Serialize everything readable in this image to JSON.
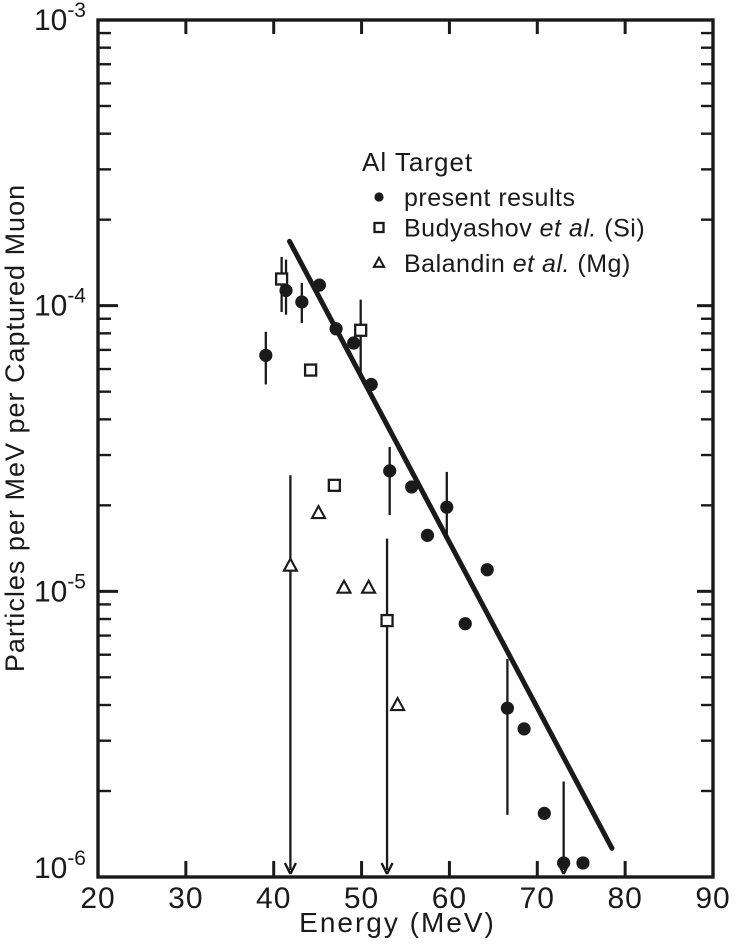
{
  "figure": {
    "background": "#ffffff",
    "ink": "#1a1a1a"
  },
  "x_axis": {
    "label": "Energy (MeV)",
    "ticks": [
      20,
      30,
      40,
      50,
      60,
      70,
      80,
      90
    ]
  },
  "y_axis": {
    "label": "Particles per MeV per Captured Muon",
    "base": "10",
    "tick_exponents": [
      -3,
      -4,
      -5,
      -6
    ]
  },
  "legend": {
    "title": "Al Target",
    "entries": [
      {
        "marker": "filled-circle",
        "parts": [
          {
            "t": "present results",
            "i": false
          }
        ]
      },
      {
        "marker": "open-square",
        "parts": [
          {
            "t": "Budyashov ",
            "i": false
          },
          {
            "t": "et al.",
            "i": true
          },
          {
            "t": " (Si)",
            "i": false
          }
        ]
      },
      {
        "marker": "open-triangle",
        "parts": [
          {
            "t": "Balandin ",
            "i": false
          },
          {
            "t": "et al.",
            "i": true
          },
          {
            "t": " (Mg)",
            "i": false
          }
        ]
      }
    ]
  },
  "chart_data": {
    "type": "scatter",
    "title": "Al Target",
    "xlabel": "Energy (MeV)",
    "ylabel": "Particles per MeV per Captured Muon",
    "x_range": [
      20,
      90
    ],
    "y_range": [
      1e-06,
      0.001
    ],
    "y_scale": "log",
    "x_ticks": [
      20,
      30,
      40,
      50,
      60,
      70,
      80,
      90
    ],
    "grid": false,
    "legend_position": "upper-right-inside",
    "fit_line": {
      "x1": 41.8,
      "y1": 0.000168,
      "x2": 78.5,
      "y2": 1.26e-06
    },
    "series": [
      {
        "name": "present results",
        "marker": "filled-circle",
        "points": [
          {
            "x": 39.1,
            "y": 6.7e-05,
            "err_lo": 5.3e-05,
            "err_hi": 8.1e-05
          },
          {
            "x": 41.4,
            "y": 0.000113,
            "err_lo": 9.3e-05,
            "err_hi": 0.000145
          },
          {
            "x": 43.2,
            "y": 0.000103,
            "err_lo": 8.7e-05,
            "err_hi": 0.00012
          },
          {
            "x": 45.2,
            "y": 0.000118
          },
          {
            "x": 47.1,
            "y": 8.3e-05
          },
          {
            "x": 49.1,
            "y": 7.4e-05
          },
          {
            "x": 51.1,
            "y": 5.3e-05
          },
          {
            "x": 53.2,
            "y": 2.64e-05,
            "err_lo": 1.85e-05,
            "err_hi": 3.2e-05
          },
          {
            "x": 55.7,
            "y": 2.32e-05
          },
          {
            "x": 57.5,
            "y": 1.57e-05
          },
          {
            "x": 59.7,
            "y": 1.97e-05,
            "err_lo": 1.53e-05,
            "err_hi": 2.62e-05
          },
          {
            "x": 61.8,
            "y": 7.7e-06
          },
          {
            "x": 64.3,
            "y": 1.19e-05
          },
          {
            "x": 66.6,
            "y": 3.9e-06,
            "err_lo": 1.65e-06,
            "err_hi": 5.8e-06
          },
          {
            "x": 68.5,
            "y": 3.3e-06
          },
          {
            "x": 70.8,
            "y": 1.67e-06
          },
          {
            "x": 73.0,
            "y": 1.12e-06,
            "err_hi": 2.16e-06,
            "arrow_to_axis": true
          },
          {
            "x": 75.2,
            "y": 1.12e-06
          }
        ]
      },
      {
        "name": "Budyashov et al. (Si)",
        "marker": "open-square",
        "points": [
          {
            "x": 40.9,
            "y": 0.000124,
            "err_lo": 9.5e-05,
            "err_hi": 0.000148
          },
          {
            "x": 44.2,
            "y": 5.95e-05
          },
          {
            "x": 46.9,
            "y": 2.35e-05
          },
          {
            "x": 49.9,
            "y": 8.2e-05,
            "err_lo": 5.7e-05,
            "err_hi": 0.000105
          },
          {
            "x": 52.9,
            "y": 7.9e-06,
            "err_hi": 1.53e-05,
            "arrow_to_axis": true
          }
        ]
      },
      {
        "name": "Balandin et al. (Mg)",
        "marker": "open-triangle",
        "points": [
          {
            "x": 41.9,
            "y": 1.23e-05,
            "err_hi": 2.55e-05,
            "arrow_to_axis": true
          },
          {
            "x": 45.1,
            "y": 1.88e-05
          },
          {
            "x": 48.0,
            "y": 1.03e-05
          },
          {
            "x": 50.8,
            "y": 1.03e-05
          },
          {
            "x": 54.1,
            "y": 4e-06
          }
        ]
      }
    ]
  }
}
